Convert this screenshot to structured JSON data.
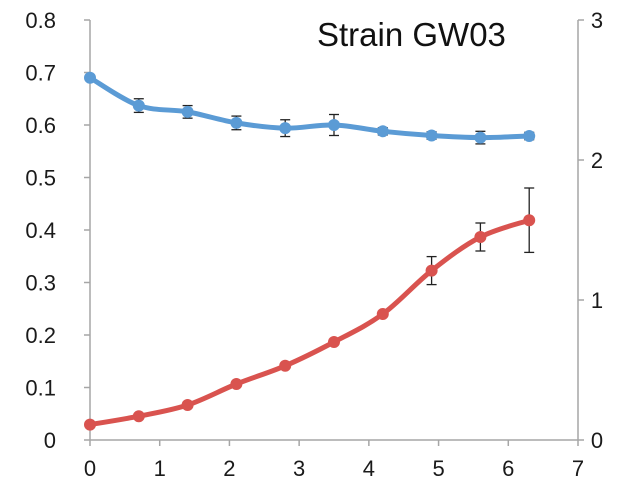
{
  "chart_data": {
    "type": "line",
    "title": "Strain GW03",
    "xlabel": "",
    "ylabel": "",
    "y2label": "",
    "xlim": [
      0,
      7
    ],
    "ylim": [
      0,
      0.8
    ],
    "y2lim": [
      0,
      3
    ],
    "x_ticks": [
      "0",
      "1",
      "2",
      "3",
      "4",
      "5",
      "6",
      "7"
    ],
    "y_ticks": [
      "0",
      "0.1",
      "0.2",
      "0.3",
      "0.4",
      "0.5",
      "0.6",
      "0.7",
      "0.8"
    ],
    "y2_ticks": [
      "0",
      "1",
      "2",
      "3"
    ],
    "grid": false,
    "legend": "none",
    "series": [
      {
        "axis": "left",
        "color": "#5b9bd5",
        "x": [
          0,
          0.7,
          1.4,
          2.1,
          2.8,
          3.5,
          4.2,
          4.9,
          5.6,
          6.3
        ],
        "y": [
          0.69,
          0.637,
          0.625,
          0.604,
          0.594,
          0.6,
          0.588,
          0.58,
          0.576,
          0.579
        ],
        "err": [
          0,
          0.013,
          0.012,
          0.013,
          0.016,
          0.02,
          0.007,
          0.007,
          0.012,
          0.007
        ]
      },
      {
        "axis": "right",
        "color": "#d9534f",
        "x": [
          0,
          0.7,
          1.4,
          2.1,
          2.8,
          3.5,
          4.2,
          4.9,
          5.6,
          6.3
        ],
        "y": [
          0.11,
          0.17,
          0.25,
          0.4,
          0.53,
          0.7,
          0.9,
          1.21,
          1.45,
          1.57
        ],
        "err": [
          0,
          0,
          0,
          0,
          0,
          0,
          0,
          0.1,
          0.1,
          0.23
        ]
      }
    ]
  }
}
